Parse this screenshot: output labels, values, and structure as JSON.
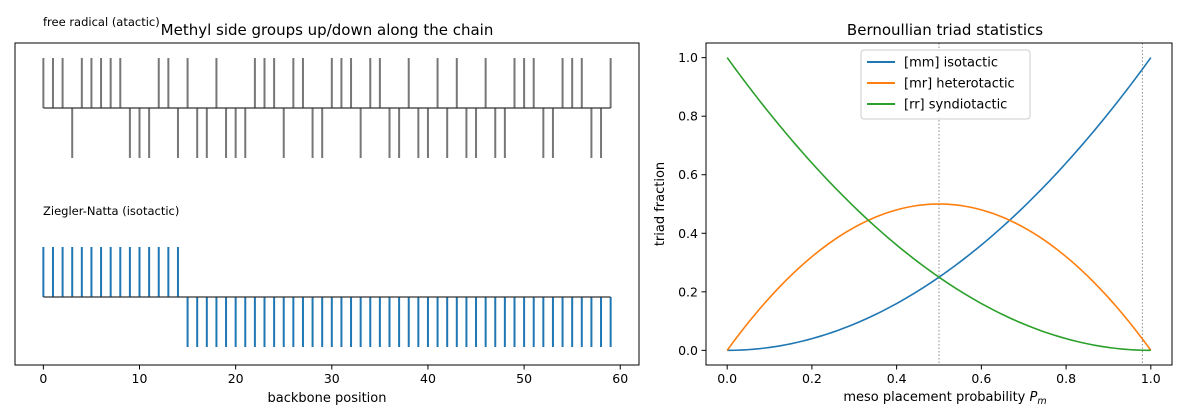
{
  "chart_data": [
    {
      "type": "line",
      "title": "Methyl side groups up/down along the chain",
      "xlabel": "backbone position",
      "ylabel": "",
      "xlim": [
        -2.95,
        61.95
      ],
      "xticks": [
        0,
        10,
        20,
        30,
        40,
        50,
        60
      ],
      "yticks": "none",
      "grid": false,
      "panels": [
        {
          "label": "free radical (atactic)",
          "positions": [
            0,
            1,
            2,
            3,
            4,
            5,
            6,
            7,
            8,
            9,
            10,
            11,
            12,
            13,
            14,
            15,
            16,
            17,
            18,
            19,
            20,
            21,
            22,
            23,
            24,
            25,
            26,
            27,
            28,
            29,
            30,
            31,
            32,
            33,
            34,
            35,
            36,
            37,
            38,
            39,
            40,
            41,
            42,
            43,
            44,
            45,
            46,
            47,
            48,
            49,
            50,
            51,
            52,
            53,
            54,
            55,
            56,
            57,
            58,
            59
          ],
          "side": [
            "up",
            "up",
            "up",
            "down",
            "up",
            "up",
            "up",
            "up",
            "up",
            "down",
            "down",
            "down",
            "up",
            "up",
            "down",
            "up",
            "down",
            "down",
            "up",
            "down",
            "down",
            "down",
            "up",
            "up",
            "up",
            "down",
            "up",
            "up",
            "down",
            "down",
            "up",
            "up",
            "up",
            "down",
            "up",
            "up",
            "down",
            "down",
            "up",
            "down",
            "down",
            "up",
            "down",
            "up",
            "down",
            "down",
            "up",
            "down",
            "down",
            "up",
            "up",
            "up",
            "down",
            "down",
            "up",
            "up",
            "up",
            "down",
            "down",
            "up"
          ],
          "color": "#777777"
        },
        {
          "label": "Ziegler-Natta (isotactic)",
          "positions": [
            0,
            1,
            2,
            3,
            4,
            5,
            6,
            7,
            8,
            9,
            10,
            11,
            12,
            13,
            14,
            15,
            16,
            17,
            18,
            19,
            20,
            21,
            22,
            23,
            24,
            25,
            26,
            27,
            28,
            29,
            30,
            31,
            32,
            33,
            34,
            35,
            36,
            37,
            38,
            39,
            40,
            41,
            42,
            43,
            44,
            45,
            46,
            47,
            48,
            49,
            50,
            51,
            52,
            53,
            54,
            55,
            56,
            57,
            58,
            59
          ],
          "side": [
            "up",
            "up",
            "up",
            "up",
            "up",
            "up",
            "up",
            "up",
            "up",
            "up",
            "up",
            "up",
            "up",
            "up",
            "up",
            "down",
            "down",
            "down",
            "down",
            "down",
            "down",
            "down",
            "down",
            "down",
            "down",
            "down",
            "down",
            "down",
            "down",
            "down",
            "down",
            "down",
            "down",
            "down",
            "down",
            "down",
            "down",
            "down",
            "down",
            "down",
            "down",
            "down",
            "down",
            "down",
            "down",
            "down",
            "down",
            "down",
            "down",
            "down",
            "down",
            "down",
            "down",
            "down",
            "down",
            "down",
            "down",
            "down",
            "down",
            "down"
          ],
          "color": "#1f77b4"
        }
      ]
    },
    {
      "type": "line",
      "title": "Bernoullian triad statistics",
      "xlabel": "meso placement probability P_m",
      "xlabel_main": "meso placement probability ",
      "xlabel_sym": "P",
      "xlabel_sub": "m",
      "ylabel": "triad fraction",
      "xlim": [
        -0.05,
        1.05
      ],
      "ylim": [
        -0.05,
        1.05
      ],
      "xticks": [
        0.0,
        0.2,
        0.4,
        0.6,
        0.8,
        1.0
      ],
      "xtick_labels": [
        "0.0",
        "0.2",
        "0.4",
        "0.6",
        "0.8",
        "1.0"
      ],
      "yticks": [
        0.0,
        0.2,
        0.4,
        0.6,
        0.8,
        1.0
      ],
      "ytick_labels": [
        "0.0",
        "0.2",
        "0.4",
        "0.6",
        "0.8",
        "1.0"
      ],
      "grid": false,
      "legend": "top-center",
      "vlines": [
        0.5,
        0.98
      ],
      "x": [
        0.0,
        0.1,
        0.2,
        0.3,
        0.4,
        0.5,
        0.6,
        0.7,
        0.8,
        0.9,
        1.0
      ],
      "series": [
        {
          "name": "[mm] isotactic",
          "color": "#1f77b4",
          "values": [
            0.0,
            0.01,
            0.04,
            0.09,
            0.16,
            0.25,
            0.36,
            0.49,
            0.64,
            0.81,
            1.0
          ]
        },
        {
          "name": "[mr] heterotactic",
          "color": "#ff7f0e",
          "values": [
            0.0,
            0.18,
            0.32,
            0.42,
            0.48,
            0.5,
            0.48,
            0.42,
            0.32,
            0.18,
            0.0
          ]
        },
        {
          "name": "[rr] syndiotactic",
          "color": "#2ca02c",
          "values": [
            1.0,
            0.81,
            0.64,
            0.49,
            0.36,
            0.25,
            0.16,
            0.09,
            0.04,
            0.01,
            0.0
          ]
        }
      ]
    }
  ]
}
